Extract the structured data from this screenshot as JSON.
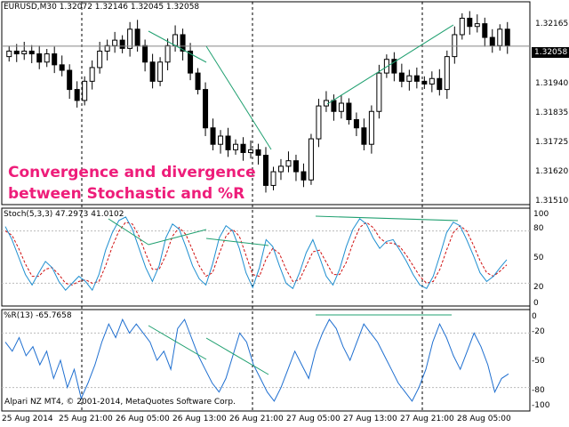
{
  "main": {
    "header_text": "EURUSD,M30  1.32072 1.32146 1.32045 1.32058",
    "annotation_line1": "Convergence and divergence",
    "annotation_line2": "between Stochastic and %R",
    "current_price_label": "1.32058",
    "price_ticks": [
      "1.32165",
      "1.31940",
      "1.31835",
      "1.31725",
      "1.31620",
      "1.31510"
    ]
  },
  "stoch": {
    "header_text": "Stoch(5,3,3) 47.2973 41.0102",
    "ticks": [
      "100",
      "80",
      "50",
      "20",
      "0"
    ]
  },
  "wpr": {
    "header_text": "%R(13) -65.7658",
    "ticks": [
      "0",
      "-20",
      "-50",
      "-80",
      "-100"
    ]
  },
  "footer": {
    "copyright": "Alpari NZ MT4, © 2001-2014, MetaQuotes Software Corp."
  },
  "time_ticks": [
    "25 Aug 2014",
    "25 Aug 21:00",
    "26 Aug 05:00",
    "26 Aug 13:00",
    "26 Aug 21:00",
    "27 Aug 05:00",
    "27 Aug 13:00",
    "27 Aug 21:00",
    "28 Aug 05:00"
  ],
  "colors": {
    "candle": "#000000",
    "trendline": "#20a070",
    "stoch_main": "#1f8fd0",
    "stoch_signal": "#d01010",
    "wpr_line": "#1f6fd0",
    "annotation": "#ee1d7a"
  },
  "chart_data": [
    {
      "type": "candlestick",
      "symbol": "EURUSD",
      "timeframe": "M30",
      "ylim": [
        1.3148,
        1.3222
      ],
      "last_price": 1.32058,
      "close_series": [
        1.3204,
        1.3203,
        1.3204,
        1.3203,
        1.32,
        1.3203,
        1.3199,
        1.3197,
        1.319,
        1.3186,
        1.3193,
        1.3198,
        1.3204,
        1.3206,
        1.3208,
        1.3205,
        1.3212,
        1.3206,
        1.32,
        1.3193,
        1.32,
        1.3206,
        1.321,
        1.3204,
        1.3196,
        1.319,
        1.3176,
        1.317,
        1.3173,
        1.3168,
        1.317,
        1.3167,
        1.3168,
        1.3166,
        1.3155,
        1.316,
        1.3162,
        1.3164,
        1.316,
        1.3157,
        1.3172,
        1.3184,
        1.3186,
        1.3182,
        1.3185,
        1.3179,
        1.3176,
        1.317,
        1.3182,
        1.3196,
        1.3201,
        1.3196,
        1.3193,
        1.3195,
        1.3193,
        1.3192,
        1.3194,
        1.319,
        1.3202,
        1.321,
        1.3216,
        1.3213,
        1.3214,
        1.3209,
        1.3206,
        1.3212,
        1.3206
      ]
    },
    {
      "type": "line",
      "name": "Stoch(5,3,3)",
      "ylim": [
        0,
        100
      ],
      "series": [
        {
          "values": [
            85,
            70,
            50,
            30,
            18,
            32,
            45,
            38,
            22,
            12,
            20,
            28,
            22,
            12,
            30,
            58,
            78,
            92,
            96,
            82,
            60,
            38,
            22,
            40,
            72,
            88,
            82,
            62,
            40,
            25,
            18,
            42,
            72,
            86,
            80,
            60,
            32,
            15,
            38,
            70,
            62,
            40,
            20,
            14,
            32,
            55,
            70,
            50,
            28,
            18,
            36,
            62,
            82,
            94,
            88,
            72,
            60,
            68,
            70,
            58,
            45,
            30,
            18,
            14,
            28,
            52,
            78,
            90,
            86,
            70,
            52,
            32,
            22,
            28,
            38,
            47
          ]
        },
        {
          "values": [
            80,
            75,
            60,
            42,
            28,
            28,
            36,
            38,
            30,
            20,
            18,
            22,
            24,
            20,
            22,
            40,
            62,
            80,
            90,
            88,
            74,
            54,
            36,
            36,
            52,
            74,
            84,
            76,
            58,
            40,
            28,
            32,
            54,
            74,
            82,
            74,
            52,
            30,
            28,
            48,
            60,
            54,
            36,
            22,
            24,
            40,
            56,
            58,
            44,
            30,
            30,
            44,
            66,
            84,
            90,
            84,
            72,
            66,
            66,
            62,
            52,
            40,
            28,
            20,
            22,
            36,
            58,
            78,
            86,
            80,
            64,
            46,
            32,
            28,
            34,
            41
          ]
        }
      ]
    },
    {
      "type": "line",
      "name": "%R(13)",
      "ylim": [
        -100,
        0
      ],
      "values": [
        -30,
        -40,
        -25,
        -45,
        -35,
        -55,
        -40,
        -70,
        -50,
        -80,
        -60,
        -92,
        -75,
        -55,
        -30,
        -10,
        -25,
        -5,
        -20,
        -10,
        -20,
        -30,
        -50,
        -40,
        -60,
        -15,
        -5,
        -25,
        -45,
        -60,
        -75,
        -85,
        -70,
        -45,
        -20,
        -30,
        -55,
        -70,
        -85,
        -95,
        -80,
        -60,
        -40,
        -55,
        -70,
        -40,
        -20,
        -5,
        -15,
        -35,
        -50,
        -30,
        -10,
        -20,
        -30,
        -45,
        -60,
        -75,
        -85,
        -95,
        -80,
        -60,
        -30,
        -10,
        -25,
        -45,
        -60,
        -40,
        -20,
        -35,
        -55,
        -85,
        -70,
        -65
      ]
    }
  ]
}
